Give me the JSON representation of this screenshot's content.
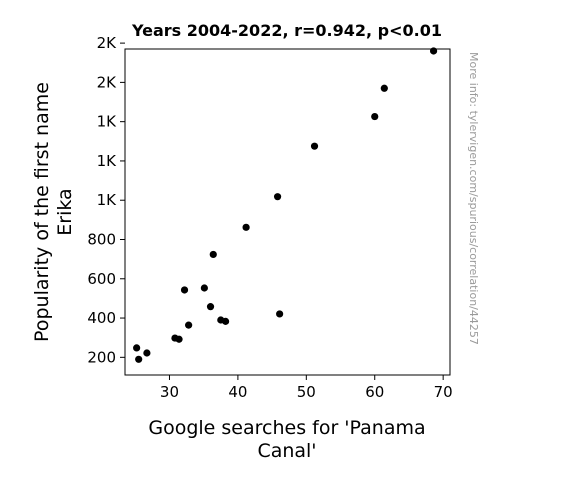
{
  "chart_data": {
    "type": "scatter",
    "title": "Years 2004-2022, r=0.942, p<0.01",
    "xlabel_lines": [
      "Google searches for 'Panama",
      "Canal'"
    ],
    "ylabel_lines": [
      "Popularity of the first name",
      "Erika"
    ],
    "watermark": "More info: tylervigen.com/spurious/correlation/44257",
    "xlim": [
      23.5,
      71
    ],
    "ylim": [
      110,
      1770
    ],
    "x_ticks": [
      {
        "value": 30,
        "label": "30"
      },
      {
        "value": 40,
        "label": "40"
      },
      {
        "value": 50,
        "label": "50"
      },
      {
        "value": 60,
        "label": "60"
      },
      {
        "value": 70,
        "label": "70"
      }
    ],
    "y_ticks": [
      {
        "value": 200,
        "label": "200"
      },
      {
        "value": 400,
        "label": "400"
      },
      {
        "value": 600,
        "label": "600"
      },
      {
        "value": 800,
        "label": "800"
      },
      {
        "value": 1000,
        "label": "1K"
      },
      {
        "value": 1200,
        "label": "1K"
      },
      {
        "value": 1400,
        "label": "1K"
      },
      {
        "value": 1600,
        "label": "2K"
      },
      {
        "value": 1800,
        "label": "2K"
      }
    ],
    "grid": false,
    "marker_color": "#000000",
    "points": [
      {
        "x": 25.2,
        "y": 248
      },
      {
        "x": 25.5,
        "y": 190
      },
      {
        "x": 26.7,
        "y": 222
      },
      {
        "x": 30.8,
        "y": 298
      },
      {
        "x": 31.4,
        "y": 292
      },
      {
        "x": 32.2,
        "y": 543
      },
      {
        "x": 32.8,
        "y": 364
      },
      {
        "x": 35.1,
        "y": 553
      },
      {
        "x": 36.0,
        "y": 458
      },
      {
        "x": 36.4,
        "y": 724
      },
      {
        "x": 37.5,
        "y": 390
      },
      {
        "x": 38.2,
        "y": 383
      },
      {
        "x": 41.2,
        "y": 862
      },
      {
        "x": 45.8,
        "y": 1018
      },
      {
        "x": 46.1,
        "y": 421
      },
      {
        "x": 51.2,
        "y": 1275
      },
      {
        "x": 60.0,
        "y": 1426
      },
      {
        "x": 61.4,
        "y": 1570
      },
      {
        "x": 68.6,
        "y": 1760
      }
    ]
  }
}
